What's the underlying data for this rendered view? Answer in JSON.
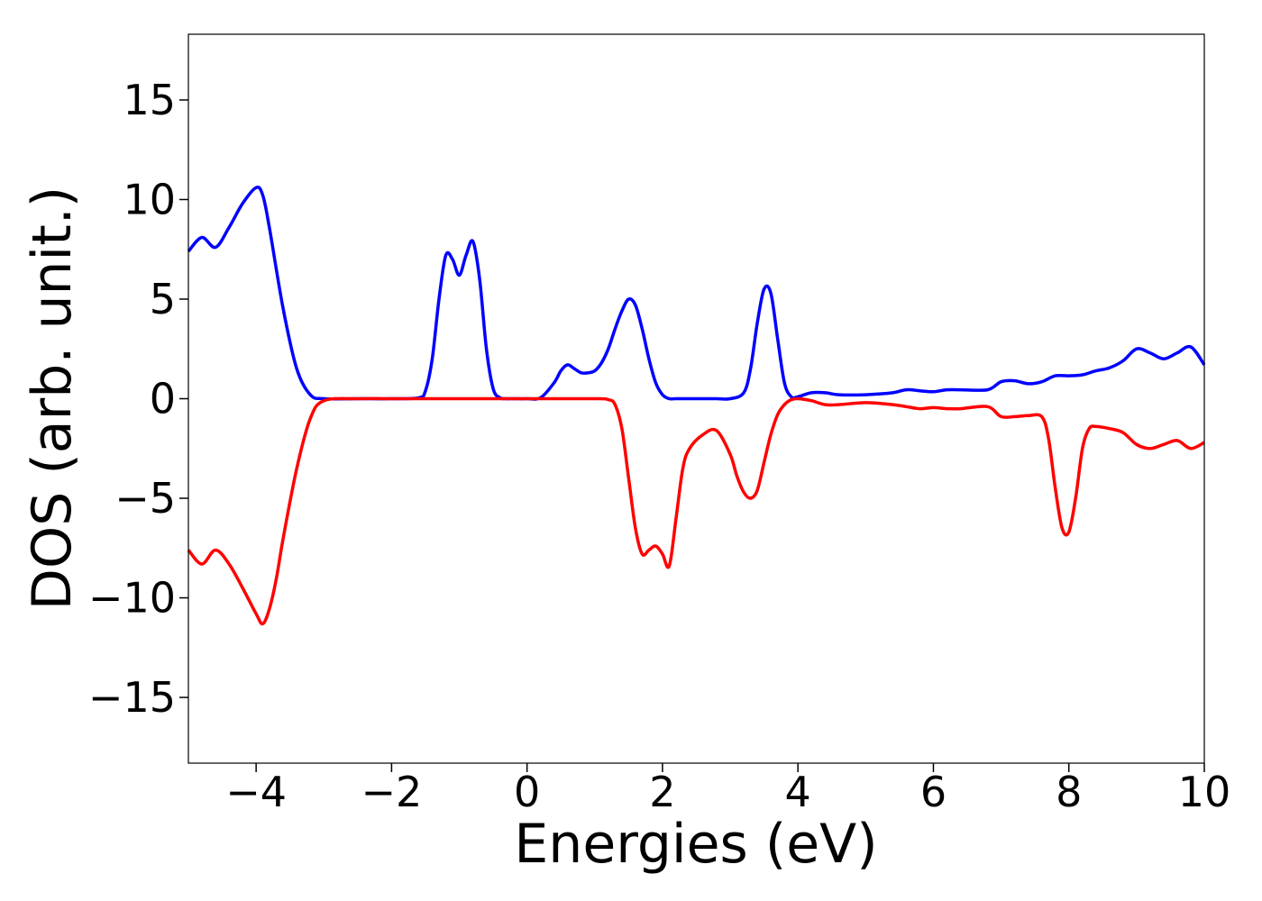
{
  "chart_data": {
    "type": "line",
    "title": "",
    "xlabel": "Energies (eV)",
    "ylabel": "DOS (arb. unit.)",
    "xlim": [
      -5,
      10
    ],
    "ylim": [
      -18.3,
      18.3
    ],
    "xticks": [
      -4,
      -2,
      0,
      2,
      4,
      6,
      8,
      10
    ],
    "xtick_labels": [
      "−4",
      "−2",
      "0",
      "2",
      "4",
      "6",
      "8",
      "10"
    ],
    "yticks": [
      15,
      10,
      5,
      0,
      -5,
      -10,
      -15
    ],
    "ytick_labels": [
      "15",
      "10",
      "5",
      "0",
      "−5",
      "−10",
      "−15"
    ],
    "grid": false,
    "series": [
      {
        "color": "#0000ff",
        "x": [
          -5.0,
          -4.8,
          -4.6,
          -4.4,
          -4.2,
          -4.0,
          -3.9,
          -3.8,
          -3.6,
          -3.4,
          -3.2,
          -3.0,
          -2.5,
          -2.0,
          -1.6,
          -1.5,
          -1.4,
          -1.3,
          -1.2,
          -1.1,
          -1.0,
          -0.9,
          -0.8,
          -0.7,
          -0.6,
          -0.5,
          -0.4,
          -0.3,
          -0.2,
          0.0,
          0.2,
          0.4,
          0.5,
          0.6,
          0.7,
          0.8,
          0.9,
          1.0,
          1.1,
          1.2,
          1.3,
          1.4,
          1.5,
          1.6,
          1.7,
          1.8,
          1.9,
          2.0,
          2.1,
          2.2,
          2.4,
          2.6,
          2.8,
          3.0,
          3.2,
          3.3,
          3.4,
          3.5,
          3.6,
          3.7,
          3.8,
          3.9,
          4.0,
          4.2,
          4.4,
          4.6,
          5.0,
          5.4,
          5.6,
          5.8,
          6.0,
          6.2,
          6.4,
          6.8,
          7.0,
          7.2,
          7.4,
          7.6,
          7.8,
          8.0,
          8.2,
          8.4,
          8.6,
          8.8,
          9.0,
          9.2,
          9.4,
          9.6,
          9.8,
          10.0
        ],
        "y": [
          7.4,
          8.1,
          7.6,
          8.6,
          9.8,
          10.6,
          10.2,
          8.5,
          4.5,
          1.5,
          0.2,
          0.0,
          0.0,
          0.0,
          0.05,
          0.4,
          2.0,
          5.0,
          7.2,
          7.0,
          6.2,
          7.2,
          7.9,
          6.0,
          2.5,
          0.5,
          0.05,
          0.0,
          0.0,
          0.0,
          0.05,
          0.8,
          1.4,
          1.7,
          1.5,
          1.3,
          1.3,
          1.4,
          1.8,
          2.5,
          3.5,
          4.4,
          5.0,
          4.7,
          3.5,
          2.0,
          0.8,
          0.2,
          0.0,
          0.0,
          0.0,
          0.0,
          0.0,
          0.0,
          0.3,
          1.5,
          3.8,
          5.5,
          5.3,
          3.0,
          0.8,
          0.1,
          0.1,
          0.3,
          0.3,
          0.2,
          0.2,
          0.3,
          0.45,
          0.4,
          0.35,
          0.45,
          0.45,
          0.45,
          0.85,
          0.9,
          0.75,
          0.85,
          1.15,
          1.15,
          1.2,
          1.4,
          1.55,
          1.9,
          2.5,
          2.3,
          2.0,
          2.3,
          2.6,
          1.7
        ]
      },
      {
        "color": "#ff0000",
        "x": [
          -5.0,
          -4.8,
          -4.6,
          -4.4,
          -4.2,
          -4.0,
          -3.9,
          -3.8,
          -3.7,
          -3.6,
          -3.4,
          -3.2,
          -3.0,
          -2.5,
          -2.0,
          -1.0,
          0.0,
          1.0,
          1.2,
          1.3,
          1.4,
          1.5,
          1.6,
          1.7,
          1.8,
          1.9,
          2.0,
          2.1,
          2.2,
          2.3,
          2.4,
          2.6,
          2.8,
          3.0,
          3.1,
          3.2,
          3.3,
          3.4,
          3.5,
          3.6,
          3.7,
          3.8,
          3.9,
          4.0,
          4.2,
          4.4,
          4.6,
          5.0,
          5.4,
          5.6,
          5.8,
          6.0,
          6.2,
          6.4,
          6.8,
          7.0,
          7.2,
          7.4,
          7.6,
          7.7,
          7.8,
          7.9,
          8.0,
          8.1,
          8.2,
          8.3,
          8.4,
          8.6,
          8.8,
          9.0,
          9.2,
          9.4,
          9.6,
          9.8,
          10.0
        ],
        "y": [
          -7.6,
          -8.3,
          -7.6,
          -8.3,
          -9.5,
          -10.8,
          -11.3,
          -10.5,
          -9.0,
          -7.0,
          -3.5,
          -1.0,
          -0.1,
          0.0,
          0.0,
          0.0,
          0.0,
          0.0,
          -0.05,
          -0.3,
          -1.5,
          -4.0,
          -6.5,
          -7.8,
          -7.6,
          -7.4,
          -7.8,
          -8.4,
          -6.0,
          -3.5,
          -2.5,
          -1.8,
          -1.6,
          -2.8,
          -3.9,
          -4.7,
          -5.0,
          -4.6,
          -3.2,
          -1.8,
          -0.8,
          -0.3,
          -0.05,
          0.0,
          -0.1,
          -0.3,
          -0.3,
          -0.2,
          -0.3,
          -0.4,
          -0.5,
          -0.45,
          -0.5,
          -0.5,
          -0.4,
          -0.9,
          -0.9,
          -0.85,
          -0.9,
          -2.0,
          -4.5,
          -6.5,
          -6.7,
          -5.0,
          -2.5,
          -1.5,
          -1.4,
          -1.5,
          -1.7,
          -2.3,
          -2.5,
          -2.3,
          -2.1,
          -2.5,
          -2.2
        ]
      }
    ]
  }
}
